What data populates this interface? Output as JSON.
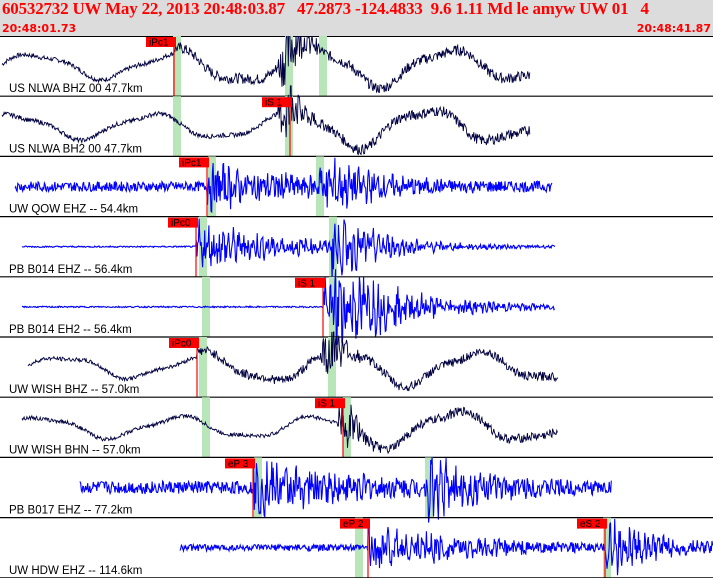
{
  "header": {
    "title": "60532732 UW May 22, 2013 20:48:03.87   47.2873 -124.4833  9.6 1.11 Md le amyw UW 01   4",
    "start_time": "20:48:01.73",
    "end_time": "20:48:41.87"
  },
  "colors": {
    "header_text": "#ff0000",
    "header_bg": "#dcdcdc",
    "trace_short_period": "#0000ff",
    "trace_broadband": "#000040",
    "pick_flag": "#ff0000",
    "window_band": "#b8e6b8"
  },
  "traces": [
    {
      "label": "US NLWA BHZ 00 47.7km",
      "color": "#000040",
      "amp": 30,
      "start": 2,
      "end": 530,
      "noise": 0.15,
      "style": "bb",
      "picks": [
        {
          "label": "iPc1",
          "t": 174
        }
      ],
      "bands": [
        176,
        288,
        322
      ]
    },
    {
      "label": "US NLWA BH2 00 47.7km",
      "color": "#000040",
      "amp": 30,
      "start": 2,
      "end": 530,
      "noise": 0.15,
      "style": "bb",
      "picks": [
        {
          "label": "iS 1",
          "t": 290
        }
      ],
      "bands": [
        176,
        288
      ]
    },
    {
      "label": "UW QOW EHZ -- 54.4km",
      "color": "#0000ff",
      "amp": 22,
      "start": 15,
      "end": 552,
      "noise": 0.45,
      "style": "sp",
      "picks": [
        {
          "label": "iPc1",
          "t": 207
        }
      ],
      "bands": [
        211,
        319
      ]
    },
    {
      "label": "PB B014 EHZ -- 56.4km",
      "color": "#0000ff",
      "amp": 28,
      "start": 22,
      "end": 555,
      "noise": 0.05,
      "style": "sp",
      "picks": [
        {
          "label": "iPc0",
          "t": 196
        }
      ],
      "bands": [
        202,
        332
      ]
    },
    {
      "label": "PB B014 EH2 -- 56.4km",
      "color": "#0000ff",
      "amp": 28,
      "start": 22,
      "end": 555,
      "noise": 0.05,
      "style": "sp",
      "picks": [
        {
          "label": "iS 1",
          "t": 323
        }
      ],
      "bands": [
        205,
        332
      ]
    },
    {
      "label": "UW WISH BHZ -- 57.0km",
      "color": "#000040",
      "amp": 26,
      "start": 28,
      "end": 558,
      "noise": 0.15,
      "style": "bb",
      "picks": [
        {
          "label": "iPc0",
          "t": 197
        }
      ],
      "bands": [
        202,
        331
      ]
    },
    {
      "label": "UW WISH BHN -- 57.0km",
      "color": "#000040",
      "amp": 26,
      "start": 22,
      "end": 558,
      "noise": 0.15,
      "style": "bb",
      "picks": [
        {
          "label": "iS 1",
          "t": 343
        }
      ],
      "bands": [
        205,
        346
      ]
    },
    {
      "label": "PB B017 EHZ -- 77.2km",
      "color": "#0000ff",
      "amp": 26,
      "start": 80,
      "end": 612,
      "noise": 0.5,
      "style": "sp",
      "picks": [
        {
          "label": "eP 3",
          "t": 253
        }
      ],
      "bands": [
        257,
        428
      ]
    },
    {
      "label": "UW HDW EHZ -- 114.6km",
      "color": "#0000ff",
      "amp": 26,
      "start": 180,
      "end": 713,
      "noise": 0.25,
      "style": "sp",
      "picks": [
        {
          "label": "eP 2",
          "t": 368
        },
        {
          "label": "eS 2",
          "t": 605
        }
      ],
      "bands": [
        358,
        606
      ]
    }
  ]
}
